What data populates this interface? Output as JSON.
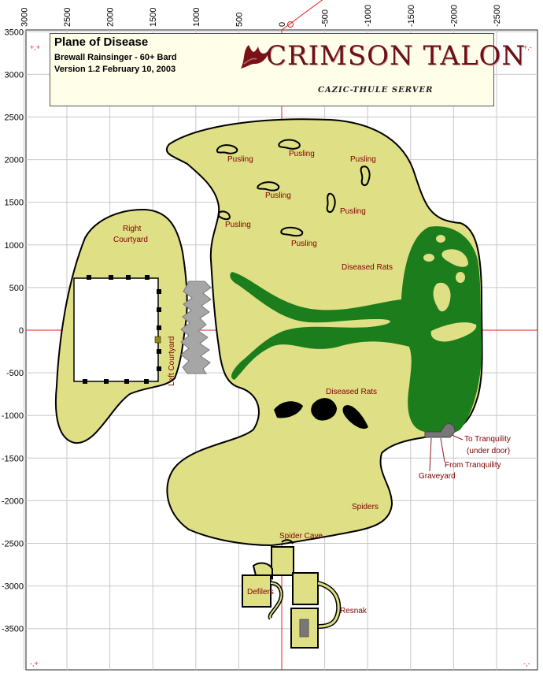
{
  "header": {
    "title": "Plane of Disease",
    "author": "Brewall Rainsinger - 60+ Bard",
    "version": "Version 1.2 February 10, 2003",
    "logo_text": "CRIMSON TALON",
    "server": "CAZIC-THULE SERVER"
  },
  "axes": {
    "x_ticks": [
      "3000",
      "2500",
      "2000",
      "1500",
      "1000",
      "500",
      "0",
      "-500",
      "-1000",
      "-1500",
      "-2000",
      "-2500"
    ],
    "y_ticks": [
      "3500",
      "3000",
      "2500",
      "2000",
      "1500",
      "1000",
      "500",
      "0",
      "-500",
      "-1000",
      "-1500",
      "-2000",
      "-2500",
      "-3000",
      "-3500"
    ]
  },
  "corner_markers": {
    "top_left": "+,+",
    "top_right": "+,-",
    "bottom_left": "-,+",
    "bottom_right": "-,-"
  },
  "labels": {
    "pusling": "Pusling",
    "right_courtyard_1": "Right",
    "right_courtyard_2": "Courtyard",
    "left_courtyard": "Left Courtyard",
    "diseased_rats": "Diseased Rats",
    "to_tranquility_1": "To Tranquility",
    "to_tranquility_2": "(under door)",
    "from_tranquility": "From Tranquility",
    "graveyard": "Graveyard",
    "spiders": "Spiders",
    "spider_cave": "Spider Cave",
    "defilers": "Defilers",
    "resnak": "Resnak"
  },
  "colors": {
    "ground": "#dfdf85",
    "grass": "#1c7d1c",
    "rock": "#a6a6a6",
    "label": "#800000",
    "grid": "#c0c0c0",
    "axis": "#e02020"
  }
}
